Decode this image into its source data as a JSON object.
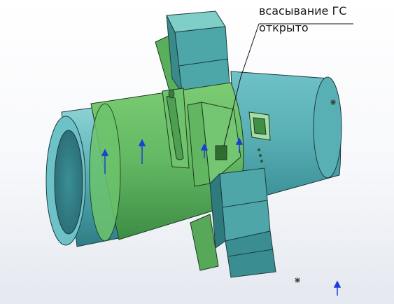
{
  "annotation": {
    "line1": "всасывание ГС",
    "line2": "открыто"
  },
  "colors": {
    "housing_green": "#6cc06c",
    "shaft_cyan": "#5fb6bd",
    "triad_blue": "#1a3fd6",
    "background": "#ffffff"
  },
  "icons": {
    "triad": "coordinate-triad-icon",
    "origin": "origin-point-icon"
  }
}
